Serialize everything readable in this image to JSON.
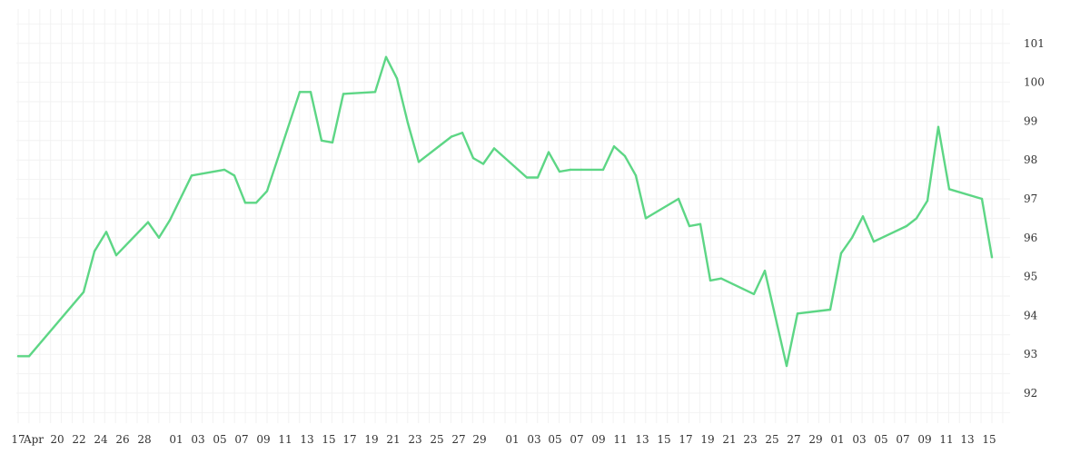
{
  "chart_data": {
    "type": "line",
    "title": "",
    "xlabel": "",
    "ylabel": "",
    "ylim": [
      91.2,
      102
    ],
    "y_ticks": [
      92,
      93,
      94,
      95,
      96,
      97,
      98,
      99,
      100,
      101
    ],
    "y_axis_side": "right",
    "grid": true,
    "x_tick_labels": [
      "17",
      "Apr",
      "20",
      "22",
      "24",
      "26",
      "28",
      "01",
      "03",
      "05",
      "07",
      "09",
      "11",
      "13",
      "15",
      "17",
      "19",
      "21",
      "23",
      "25",
      "27",
      "29",
      "01",
      "03",
      "05",
      "07",
      "09",
      "11",
      "13",
      "15",
      "17",
      "19",
      "21",
      "23",
      "25",
      "27",
      "29",
      "01",
      "03",
      "05",
      "07",
      "09",
      "11",
      "13",
      "15"
    ],
    "series": [
      {
        "name": "",
        "color": "#5dd685",
        "values": [
          92.95,
          92.95,
          94.6,
          95.65,
          96.15,
          95.55,
          96.4,
          96.0,
          96.45,
          97.6,
          97.75,
          97.6,
          96.9,
          96.9,
          97.2,
          99.75,
          99.75,
          98.5,
          98.45,
          99.7,
          99.75,
          100.65,
          100.1,
          98.95,
          97.95,
          98.6,
          98.7,
          98.05,
          97.9,
          98.3,
          97.55,
          97.55,
          98.2,
          97.7,
          97.75,
          97.75,
          97.75,
          98.35,
          98.1,
          97.6,
          96.5,
          97.0,
          96.3,
          96.35,
          94.9,
          94.95,
          94.55,
          95.15,
          92.7,
          94.05,
          94.15,
          95.6,
          96.0,
          96.55,
          95.9,
          96.3,
          96.5,
          96.95,
          98.85,
          97.25,
          97.0,
          95.5
        ]
      }
    ]
  }
}
